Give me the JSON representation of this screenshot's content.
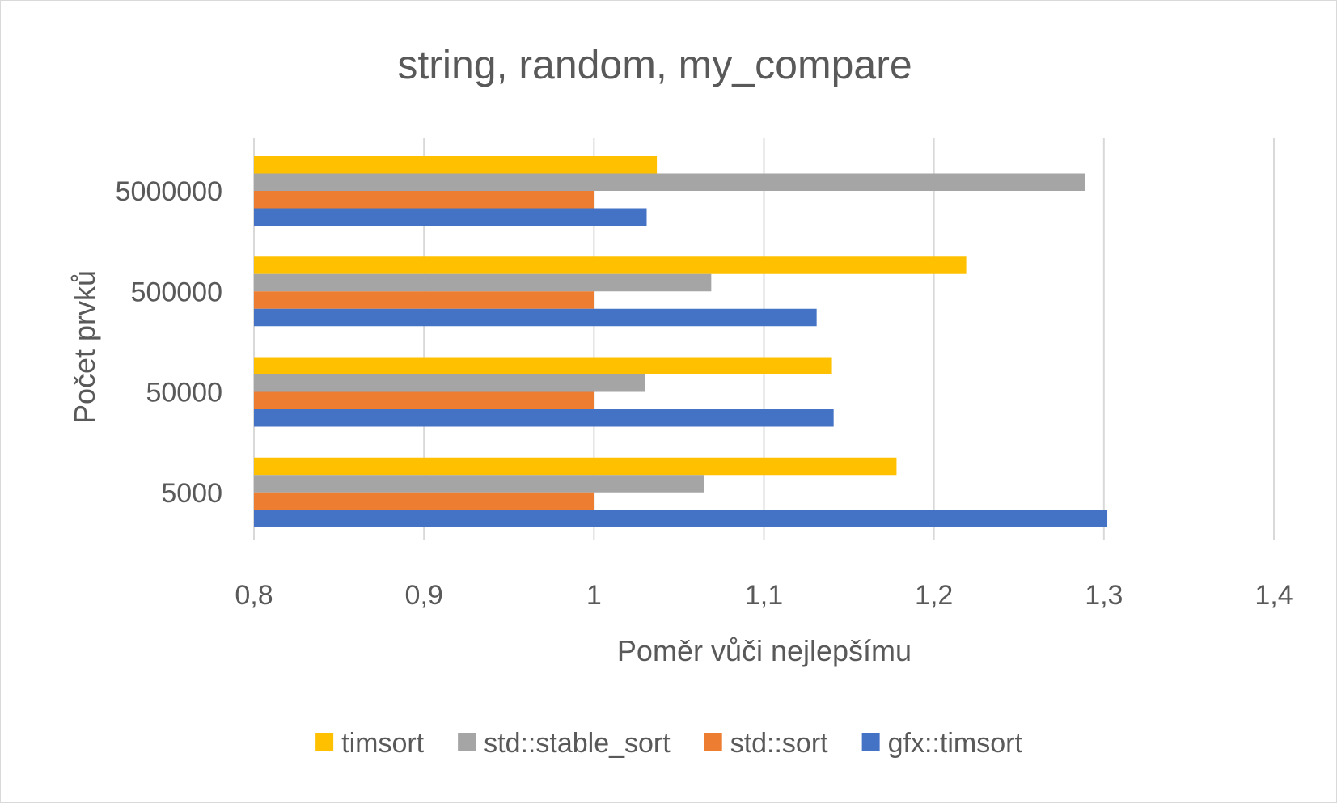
{
  "chart_data": {
    "type": "bar",
    "orientation": "horizontal",
    "title": "string, random, my_compare",
    "xlabel": "Poměr vůči nejlepšímu",
    "ylabel": "Počet prvků",
    "xlim": [
      0.8,
      1.4
    ],
    "x_ticks": [
      "0,8",
      "0,9",
      "1",
      "1,1",
      "1,2",
      "1,3",
      "1,4"
    ],
    "categories": [
      "5000",
      "50000",
      "500000",
      "5000000"
    ],
    "series": [
      {
        "name": "timsort",
        "color": "#FFC000",
        "values": [
          1.178,
          1.14,
          1.219,
          1.037
        ]
      },
      {
        "name": "std::stable_sort",
        "color": "#A5A5A5",
        "values": [
          1.065,
          1.03,
          1.069,
          1.289
        ]
      },
      {
        "name": "std::sort",
        "color": "#ED7D31",
        "values": [
          1.0,
          1.0,
          1.0,
          1.0
        ]
      },
      {
        "name": "gfx::timsort",
        "color": "#4472C4",
        "values": [
          1.302,
          1.141,
          1.131,
          1.031
        ]
      }
    ],
    "grid": "vertical",
    "legend_position": "bottom"
  }
}
